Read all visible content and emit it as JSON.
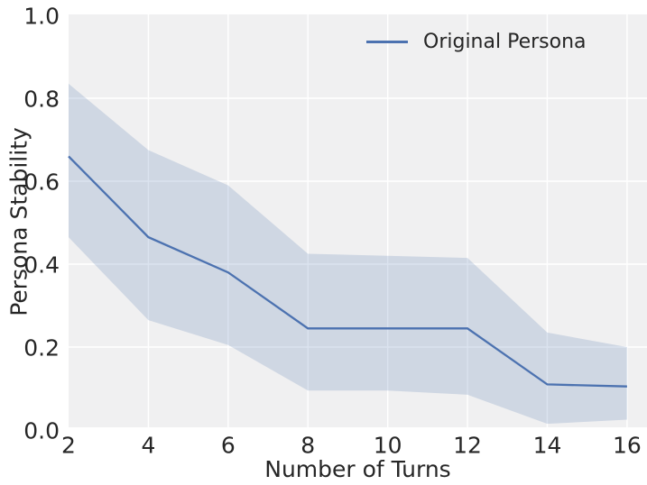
{
  "figure": {
    "background": "#ffffff",
    "plot_background": "#f0f0f1",
    "grid_color": "#ffffff",
    "text_color": "#262626"
  },
  "chart_data": {
    "type": "line",
    "title": "",
    "xlabel": "Number of Turns",
    "ylabel": "Persona Stability",
    "x": [
      2,
      4,
      6,
      8,
      10,
      12,
      14,
      16
    ],
    "series": [
      {
        "name": "Original Persona",
        "color": "#4c72b0",
        "values": [
          0.66,
          0.465,
          0.38,
          0.245,
          0.245,
          0.245,
          0.11,
          0.105
        ],
        "band_lower": [
          0.465,
          0.265,
          0.205,
          0.095,
          0.095,
          0.085,
          0.015,
          0.025
        ],
        "band_upper": [
          0.835,
          0.675,
          0.59,
          0.425,
          0.42,
          0.415,
          0.235,
          0.2
        ],
        "band_opacity": 0.2
      }
    ],
    "xticks": [
      "2",
      "4",
      "6",
      "8",
      "10",
      "12",
      "14",
      "16"
    ],
    "xtick_values": [
      2,
      4,
      6,
      8,
      10,
      12,
      14,
      16
    ],
    "yticks": [
      "0.0",
      "0.2",
      "0.4",
      "0.6",
      "0.8",
      "1.0"
    ],
    "ytick_values": [
      0,
      0.2,
      0.4,
      0.6,
      0.8,
      1.0
    ],
    "xlim": [
      2,
      16.5
    ],
    "ylim": [
      0,
      1
    ],
    "grid": true,
    "legend": {
      "position": "upper right",
      "entries": [
        "Original Persona"
      ]
    }
  }
}
